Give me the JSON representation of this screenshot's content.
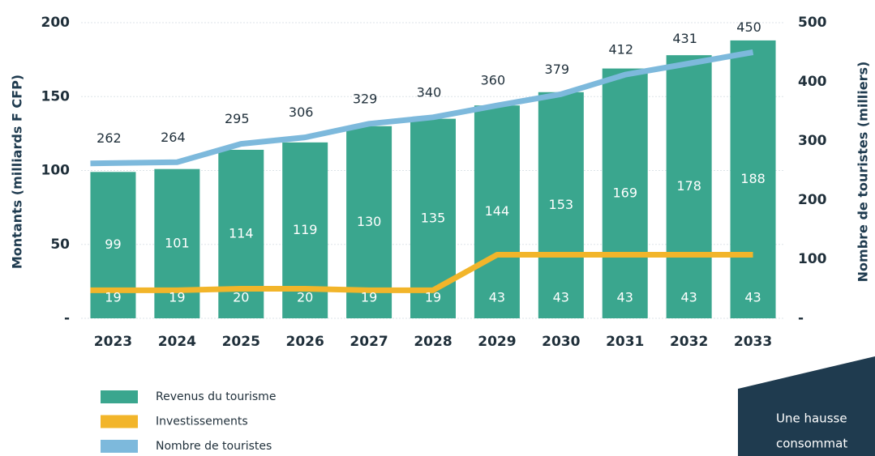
{
  "chart_data": {
    "type": "bar",
    "ylabel": "Montants (milliards F CFP)",
    "y2label": "Nombre de touristes (milliers)",
    "categories": [
      "2023",
      "2024",
      "2025",
      "2026",
      "2027",
      "2028",
      "2029",
      "2030",
      "2031",
      "2032",
      "2033"
    ],
    "series": [
      {
        "name": "Revenus du tourisme",
        "color": "#3aa68e",
        "type": "bar",
        "values": [
          99,
          101,
          114,
          119,
          130,
          135,
          144,
          153,
          169,
          178,
          188
        ]
      },
      {
        "name": "Investissements",
        "color": "#f2b52a",
        "type": "line",
        "values": [
          19,
          19,
          20,
          20,
          19,
          19,
          43,
          43,
          43,
          43,
          43
        ]
      },
      {
        "name": "Nombre de touristes",
        "color": "#7db9dc",
        "type": "line",
        "axis": "y2",
        "values": [
          262,
          264,
          295,
          306,
          329,
          340,
          360,
          379,
          412,
          431,
          450
        ]
      }
    ],
    "ylim": [
      0,
      200
    ],
    "yticks": [
      {
        "value": 0,
        "label": "-"
      },
      50,
      100,
      150,
      200
    ],
    "y2lim": [
      0,
      500
    ],
    "y2ticks": [
      {
        "value": 0,
        "label": "-"
      },
      100,
      200,
      300,
      400,
      500
    ],
    "grid": true,
    "annotation_lines": [
      "Une hausse",
      "consommat"
    ]
  }
}
